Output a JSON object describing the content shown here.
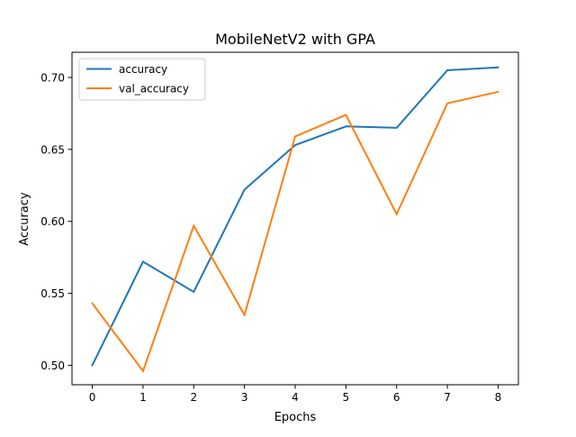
{
  "chart_data": {
    "type": "line",
    "title": "MobileNetV2 with GPA",
    "xlabel": "Epochs",
    "ylabel": "Accuracy",
    "x": [
      0,
      1,
      2,
      3,
      4,
      5,
      6,
      7,
      8
    ],
    "xticks": [
      "0",
      "1",
      "2",
      "3",
      "4",
      "5",
      "6",
      "7",
      "8"
    ],
    "yticks": [
      "0.50",
      "0.55",
      "0.60",
      "0.65",
      "0.70"
    ],
    "ytick_values": [
      0.5,
      0.55,
      0.6,
      0.65,
      0.7
    ],
    "xlim": [
      -0.4,
      8.4
    ],
    "ylim": [
      0.4865,
      0.7175
    ],
    "grid": false,
    "legend_position": "upper-left",
    "series": [
      {
        "name": "accuracy",
        "color": "#1f77b4",
        "values": [
          0.5,
          0.572,
          0.551,
          0.622,
          0.653,
          0.666,
          0.665,
          0.705,
          0.707
        ]
      },
      {
        "name": "val_accuracy",
        "color": "#ff7f0e",
        "values": [
          0.543,
          0.496,
          0.597,
          0.535,
          0.659,
          0.674,
          0.605,
          0.682,
          0.69
        ]
      }
    ]
  }
}
